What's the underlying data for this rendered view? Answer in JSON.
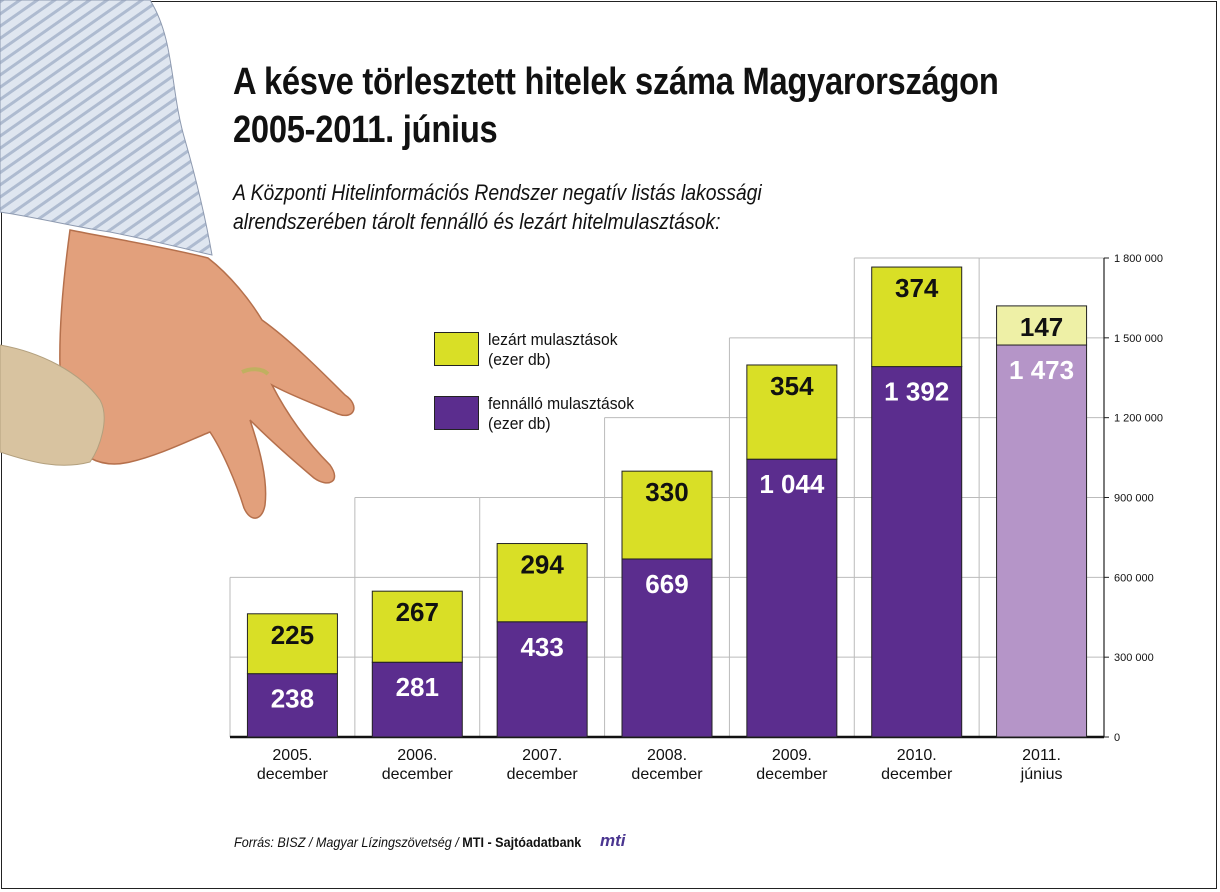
{
  "header": {
    "title_line1": "A késve törlesztett hitelek száma Magyarországon",
    "title_line2": "2005-2011. június",
    "subtitle_line1": "A Központi Hitelinformációs Rendszer negatív listás lakossági",
    "subtitle_line2": "alrendszerében tárolt fennálló és lezárt hitelmulasztások:"
  },
  "legend": {
    "closed_line1": "lezárt mulasztások",
    "closed_line2": "(ezer db)",
    "open_line1": "fennálló mulasztások",
    "open_line2": "(ezer db)"
  },
  "footer": {
    "source_prefix": "Forrás: BISZ / Magyar Lízingszövetség / ",
    "source_bold": "MTI - Sajtóadatbank",
    "logo_text": "mti"
  },
  "colors": {
    "closed": "#d9df26",
    "open": "#5b2d8e",
    "closed_light": "#eef0a6",
    "open_light": "#b595c8",
    "grid": "#bbbbbb"
  },
  "chart_data": {
    "type": "bar",
    "stacked": true,
    "categories": [
      [
        "2005.",
        "december"
      ],
      [
        "2006.",
        "december"
      ],
      [
        "2007.",
        "december"
      ],
      [
        "2008.",
        "december"
      ],
      [
        "2009.",
        "december"
      ],
      [
        "2010.",
        "december"
      ],
      [
        "2011.",
        "június"
      ]
    ],
    "series": [
      {
        "name": "fennálló mulasztások (ezer db)",
        "values": [
          238,
          281,
          433,
          669,
          1044,
          1392,
          1473
        ],
        "labels": [
          "238",
          "281",
          "433",
          "669",
          "1 044",
          "1 392",
          "1 473"
        ]
      },
      {
        "name": "lezárt mulasztások (ezer db)",
        "values": [
          225,
          267,
          294,
          330,
          354,
          374,
          147
        ],
        "labels": [
          "225",
          "267",
          "294",
          "330",
          "354",
          "374",
          "147"
        ]
      }
    ],
    "highlight_last": true,
    "yaxis": {
      "position": "right",
      "ylim": [
        0,
        1800000
      ],
      "ticks": [
        0,
        300000,
        600000,
        900000,
        1200000,
        1500000,
        1800000
      ],
      "tick_labels": [
        "0",
        "300 000",
        "600 000",
        "900 000",
        "1 200 000",
        "1 500 000",
        "1 800 000"
      ]
    },
    "grid": true
  }
}
